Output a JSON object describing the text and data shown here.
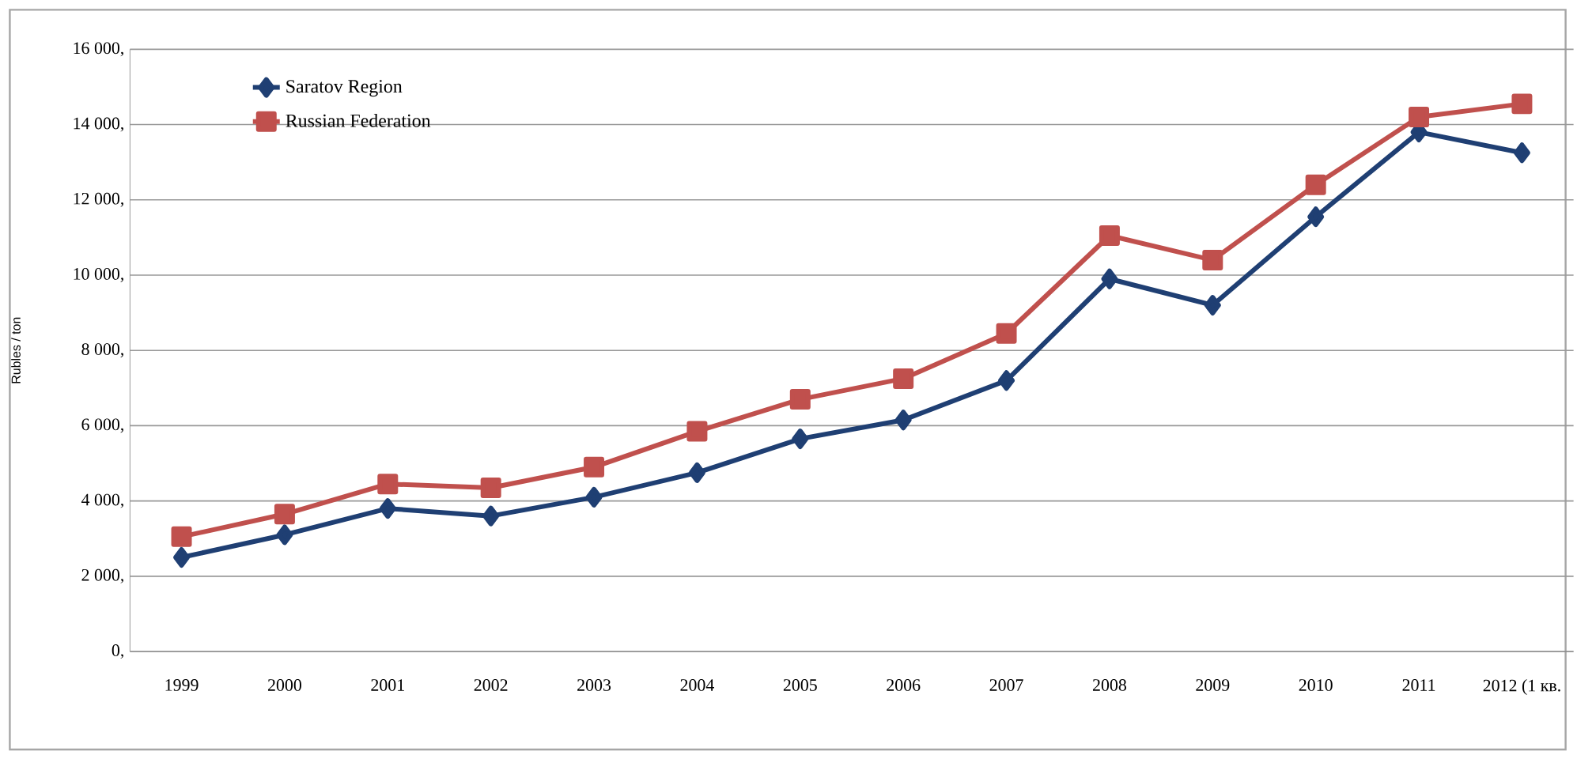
{
  "chart_data": {
    "type": "line",
    "ylabel": "Rubles / ton",
    "categories": [
      "1999",
      "2000",
      "2001",
      "2002",
      "2003",
      "2004",
      "2005",
      "2006",
      "2007",
      "2008",
      "2009",
      "2010",
      "2011",
      "2012 (1 кв."
    ],
    "series": [
      {
        "name": "Saratov Region",
        "color": "#1f3f73",
        "marker": "diamond",
        "values": [
          2500,
          3100,
          3800,
          3600,
          4100,
          4750,
          5650,
          6150,
          7200,
          9900,
          9200,
          11550,
          13800,
          13250
        ]
      },
      {
        "name": "Russian Federation",
        "color": "#c0504d",
        "marker": "square",
        "values": [
          3050,
          3650,
          4450,
          4350,
          4900,
          5850,
          6700,
          7250,
          8450,
          11050,
          10400,
          12400,
          14200,
          14550
        ]
      }
    ],
    "ylim": [
      0,
      16000
    ],
    "yticks": [
      {
        "value": 0,
        "label": "0,"
      },
      {
        "value": 2000,
        "label": "2 000,"
      },
      {
        "value": 4000,
        "label": "4 000,"
      },
      {
        "value": 6000,
        "label": "6 000,"
      },
      {
        "value": 8000,
        "label": "8 000,"
      },
      {
        "value": 10000,
        "label": "10 000,"
      },
      {
        "value": 12000,
        "label": "12 000,"
      },
      {
        "value": 14000,
        "label": "14 000,"
      },
      {
        "value": 16000,
        "label": "16 000,"
      }
    ],
    "grid": "y",
    "legend": "top left",
    "line_style": "solid"
  }
}
